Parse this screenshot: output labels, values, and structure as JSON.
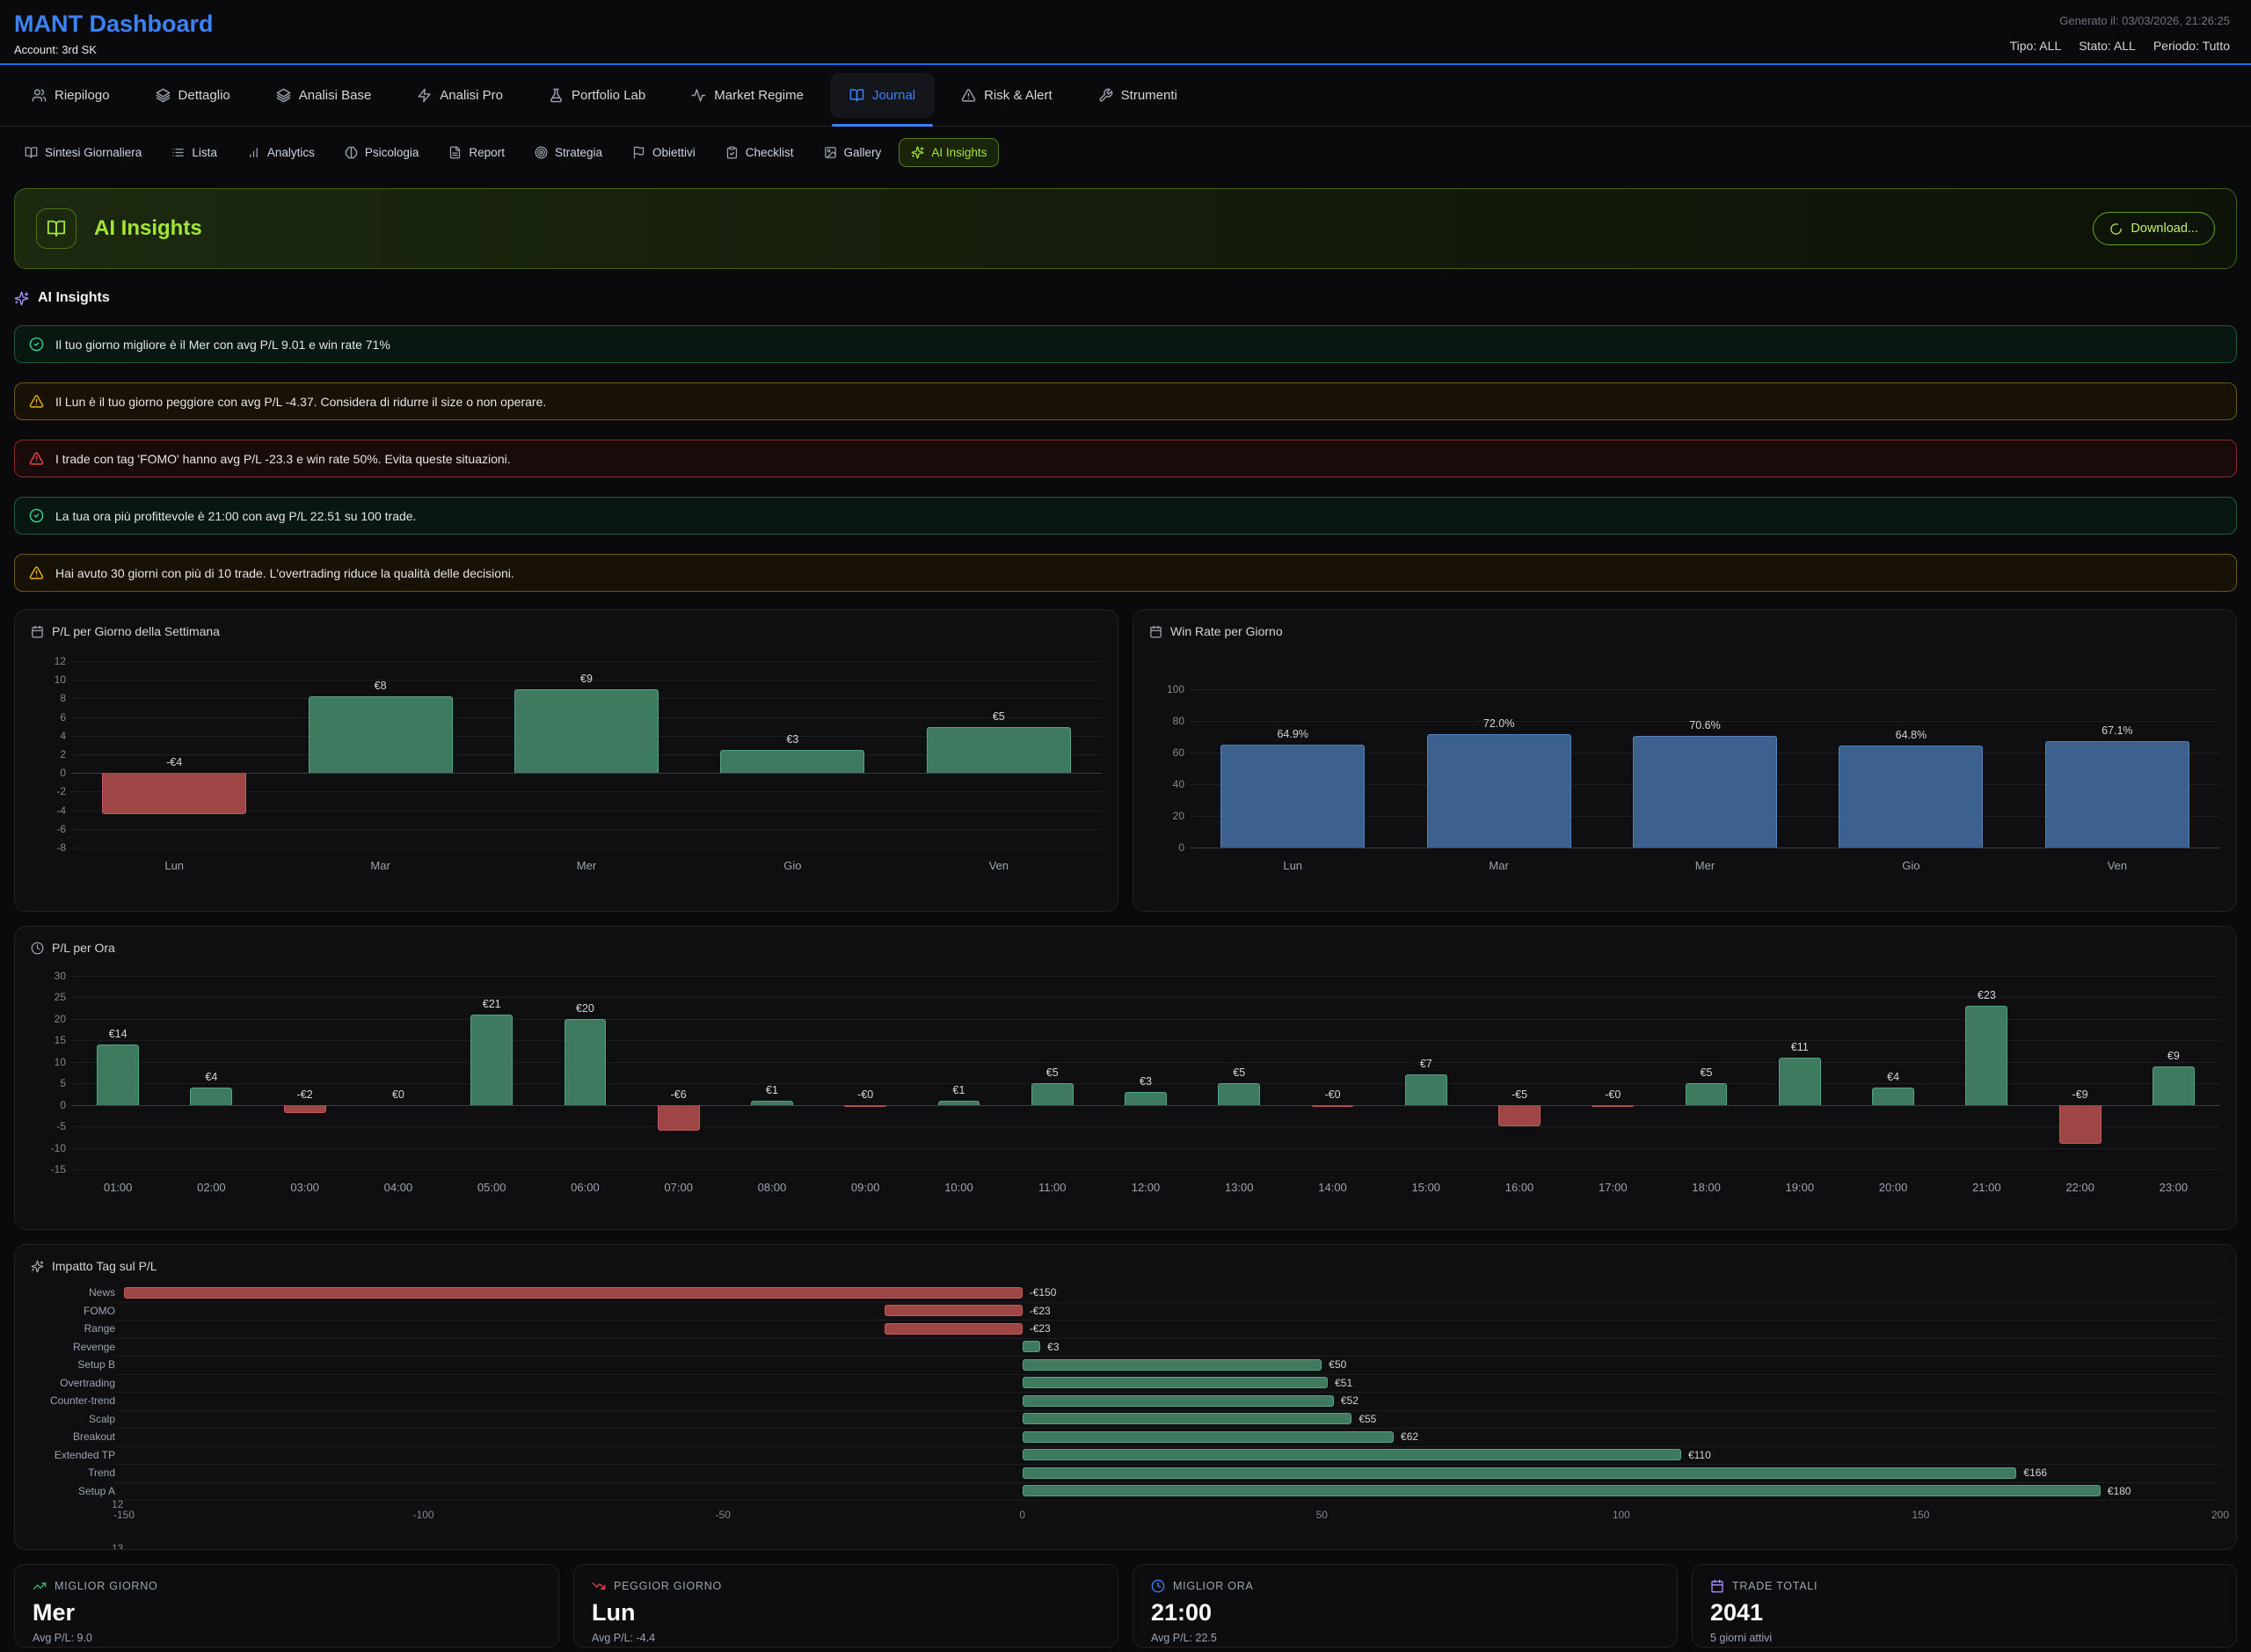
{
  "theme": {
    "accent_blue": "#3b82f6",
    "accent_lime": "#a3e635",
    "accent_purple": "#a78bfa",
    "success_green": "#34d399",
    "warning_yellow": "#eab308",
    "danger_red": "#ef4444"
  },
  "header": {
    "title": "MANT Dashboard",
    "account": "Account: 3rd SK",
    "generated": "Generato il: 03/03/2026, 21:26:25",
    "filters": {
      "tipo": "Tipo: ALL",
      "stato": "Stato: ALL",
      "periodo": "Periodo: Tutto"
    }
  },
  "tabs": {
    "items": [
      {
        "icon": "users",
        "label": "Riepilogo",
        "active": false
      },
      {
        "icon": "layers",
        "label": "Dettaglio",
        "active": false
      },
      {
        "icon": "layers",
        "label": "Analisi Base",
        "active": false
      },
      {
        "icon": "zap",
        "label": "Analisi Pro",
        "active": false
      },
      {
        "icon": "flask",
        "label": "Portfolio Lab",
        "active": false
      },
      {
        "icon": "activity",
        "label": "Market Regime",
        "active": false
      },
      {
        "icon": "book-open",
        "label": "Journal",
        "active": true
      },
      {
        "icon": "alert-triangle",
        "label": "Risk & Alert",
        "active": false
      },
      {
        "icon": "wrench",
        "label": "Strumenti",
        "active": false
      }
    ]
  },
  "subtabs": {
    "items": [
      {
        "icon": "book-open",
        "label": "Sintesi Giornaliera",
        "active": false
      },
      {
        "icon": "list",
        "label": "Lista",
        "active": false
      },
      {
        "icon": "bar-chart",
        "label": "Analytics",
        "active": false
      },
      {
        "icon": "brain",
        "label": "Psicologia",
        "active": false
      },
      {
        "icon": "file-text",
        "label": "Report",
        "active": false
      },
      {
        "icon": "target",
        "label": "Strategia",
        "active": false
      },
      {
        "icon": "flag",
        "label": "Obiettivi",
        "active": false
      },
      {
        "icon": "clipboard-check",
        "label": "Checklist",
        "active": false
      },
      {
        "icon": "image",
        "label": "Gallery",
        "active": false
      },
      {
        "icon": "sparkles",
        "label": "AI Insights",
        "active": true
      }
    ]
  },
  "banner": {
    "title": "AI Insights",
    "download_label": "Download..."
  },
  "section": {
    "title": "AI Insights"
  },
  "insights": [
    {
      "type": "success",
      "text": "Il tuo giorno migliore è il Mer con avg P/L 9.01 e win rate 71%"
    },
    {
      "type": "warning",
      "text": "Il Lun è il tuo giorno peggiore con avg P/L -4.37. Considera di ridurre il size o non operare."
    },
    {
      "type": "danger",
      "text": "I trade con tag 'FOMO' hanno avg P/L -23.3 e win rate 50%. Evita queste situazioni."
    },
    {
      "type": "success",
      "text": "La tua ora più profittevole è 21:00 con avg P/L 22.51 su 100 trade."
    },
    {
      "type": "warning",
      "text": "Hai avuto 30 giorni con più di 10 trade. L'overtrading riduce la qualità delle decisioni."
    }
  ],
  "chart_data": [
    {
      "id": "pl-per-giorno",
      "type": "bar",
      "title": "P/L per Giorno della Settimana",
      "icon": "calendar",
      "categories": [
        "Lun",
        "Mar",
        "Mer",
        "Gio",
        "Ven"
      ],
      "values": [
        -4.4,
        8.2,
        9.0,
        2.5,
        4.9
      ],
      "labels": [
        "-€4",
        "€8",
        "€9",
        "€3",
        "€5"
      ],
      "ylim": [
        -8,
        12
      ],
      "yticks": [
        12,
        10,
        8,
        6,
        4,
        2,
        0,
        -2,
        -4,
        -6,
        -8
      ],
      "grid": true,
      "legend": false,
      "pos_color": "#3d7a60",
      "pos_border": "#55a381",
      "neg_color": "#9e4545",
      "neg_border": "#c25858"
    },
    {
      "id": "win-rate-per-giorno",
      "type": "bar",
      "title": "Win Rate per Giorno",
      "icon": "calendar",
      "categories": [
        "Lun",
        "Mar",
        "Mer",
        "Gio",
        "Ven"
      ],
      "values": [
        64.9,
        72.0,
        70.6,
        64.8,
        67.1
      ],
      "labels": [
        "64.9%",
        "72.0%",
        "70.6%",
        "64.8%",
        "67.1%"
      ],
      "ylim": [
        0,
        118
      ],
      "yticks": [
        100,
        80,
        60,
        40,
        20,
        0
      ],
      "grid": true,
      "legend": false,
      "pos_color": "#3c618f",
      "pos_border": "#5380b8",
      "neg_color": "#9e4545",
      "neg_border": "#c25858"
    },
    {
      "id": "pl-per-ora",
      "type": "bar",
      "title": "P/L per Ora",
      "icon": "clock",
      "categories": [
        "01:00",
        "02:00",
        "03:00",
        "04:00",
        "05:00",
        "06:00",
        "07:00",
        "08:00",
        "09:00",
        "10:00",
        "11:00",
        "12:00",
        "13:00",
        "14:00",
        "15:00",
        "16:00",
        "17:00",
        "18:00",
        "19:00",
        "20:00",
        "21:00",
        "22:00",
        "23:00"
      ],
      "values": [
        14,
        4,
        -2,
        0,
        21,
        20,
        -6,
        1,
        -0.3,
        1,
        5,
        3,
        5,
        -0.3,
        7,
        -5,
        -0.4,
        5,
        11,
        4,
        23,
        -9,
        9
      ],
      "labels": [
        "€14",
        "€4",
        "-€2",
        "€0",
        "€21",
        "€20",
        "-€6",
        "€1",
        "-€0",
        "€1",
        "€5",
        "€3",
        "€5",
        "-€0",
        "€7",
        "-€5",
        "-€0",
        "€5",
        "€11",
        "€4",
        "€23",
        "-€9",
        "€9"
      ],
      "ylim": [
        -15,
        30
      ],
      "yticks": [
        30,
        25,
        20,
        15,
        10,
        5,
        0,
        -5,
        -10,
        -15
      ],
      "grid": true,
      "legend": false,
      "pos_color": "#3d7a60",
      "pos_border": "#55a381",
      "neg_color": "#9e4545",
      "neg_border": "#c25858"
    },
    {
      "id": "impatto-tag",
      "type": "hbar",
      "title": "Impatto Tag sul P/L",
      "icon": "sparkles",
      "categories": [
        "News",
        "FOMO",
        "Range",
        "Revenge",
        "Setup B",
        "Overtrading",
        "Counter-trend",
        "Scalp",
        "Breakout",
        "Extended TP",
        "Trend",
        "Setup A"
      ],
      "values": [
        -150,
        -23,
        -23,
        3,
        50,
        51,
        52,
        55,
        62,
        110,
        166,
        180
      ],
      "labels": [
        "-€150",
        "-€23",
        "-€23",
        "€3",
        "€50",
        "€51",
        "€52",
        "€55",
        "€62",
        "€110",
        "€166",
        "€180"
      ],
      "xlim": [
        -150,
        200
      ],
      "xticks": [
        -150,
        -100,
        -50,
        0,
        50,
        100,
        150,
        200
      ],
      "grid": true,
      "legend": false,
      "pos_color": "#3d7a60",
      "pos_border": "#55a381",
      "neg_color": "#9e4545",
      "neg_border": "#c25858",
      "axis_artifacts": [
        "12",
        "13"
      ]
    }
  ],
  "summary_cards": [
    {
      "icon": "trending-up",
      "icon_color": "#22c55e",
      "label": "MIGLIOR GIORNO",
      "value": "Mer",
      "sub": "Avg P/L: 9.0"
    },
    {
      "icon": "trending-down",
      "icon_color": "#ef4444",
      "label": "PEGGIOR GIORNO",
      "value": "Lun",
      "sub": "Avg P/L: -4.4"
    },
    {
      "icon": "clock",
      "icon_color": "#3b82f6",
      "label": "MIGLIOR ORA",
      "value": "21:00",
      "sub": "Avg P/L: 22.5"
    },
    {
      "icon": "calendar",
      "icon_color": "#a78bfa",
      "label": "TRADE TOTALI",
      "value": "2041",
      "sub": "5 giorni attivi"
    }
  ]
}
